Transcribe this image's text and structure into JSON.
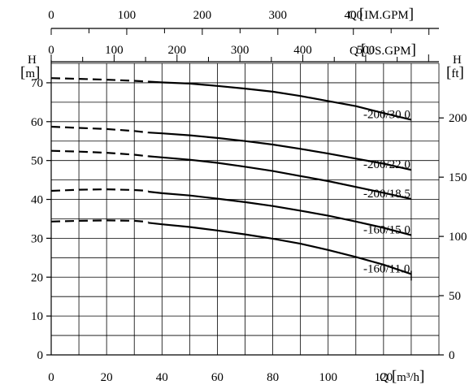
{
  "chart_data": {
    "type": "line",
    "x_axis": {
      "label": "Q [m³/h]",
      "label_text": "Q",
      "unit_text": "m³/h",
      "min": 0,
      "max": 140,
      "major_ticks": [
        0,
        20,
        40,
        60,
        80,
        100,
        120
      ],
      "minor_step": 10
    },
    "y_axis_left": {
      "label": "H [m]",
      "name_text": "H",
      "unit_text": "m",
      "min": 0,
      "max": 75,
      "major_ticks": [
        0,
        10,
        20,
        30,
        40,
        50,
        60,
        70
      ],
      "minor_step": 5
    },
    "y_axis_right": {
      "label": "H [ft]",
      "name_text": "H",
      "unit_text": "ft",
      "ticks": [
        0,
        50,
        100,
        150,
        200
      ],
      "tick_labels": [
        "0",
        "50",
        "100",
        "150",
        "200"
      ]
    },
    "top_axis_us": {
      "label": "Q [US.GPM]",
      "name_text": "Q",
      "unit_text": "US.GPM",
      "ticks": [
        0,
        100,
        200,
        300,
        400,
        500
      ],
      "tick_labels": [
        "0",
        "100",
        "200",
        "300",
        "400",
        "500"
      ]
    },
    "top_axis_im": {
      "label": "Q [IM.GPM]",
      "name_text": "Q",
      "unit_text": "IM.GPM",
      "ticks": [
        0,
        100,
        200,
        300,
        400
      ],
      "tick_labels": [
        "0",
        "100",
        "200",
        "300",
        "400"
      ]
    },
    "grid": true,
    "series": [
      {
        "name": "-200/30.0",
        "dashed": {
          "x": [
            0,
            10,
            20,
            30,
            35
          ],
          "y": [
            71.2,
            71.0,
            70.8,
            70.5,
            70.3
          ]
        },
        "solid": {
          "x": [
            35,
            40,
            50,
            60,
            70,
            80,
            90,
            100,
            110,
            120,
            130
          ],
          "y": [
            70.3,
            70.1,
            69.8,
            69.2,
            68.5,
            67.7,
            66.6,
            65.3,
            64.0,
            62.2,
            60.5
          ]
        }
      },
      {
        "name": "-200/22.0",
        "dashed": {
          "x": [
            0,
            10,
            20,
            30,
            35
          ],
          "y": [
            58.7,
            58.4,
            58.1,
            57.6,
            57.2
          ]
        },
        "solid": {
          "x": [
            35,
            40,
            50,
            60,
            70,
            80,
            90,
            100,
            110,
            120,
            130
          ],
          "y": [
            57.2,
            57.0,
            56.5,
            55.8,
            55.0,
            54.1,
            53.0,
            51.8,
            50.5,
            49.2,
            47.6
          ]
        }
      },
      {
        "name": "-200/18.5",
        "dashed": {
          "x": [
            0,
            10,
            20,
            30,
            35
          ],
          "y": [
            52.5,
            52.3,
            52.0,
            51.5,
            51.1
          ]
        },
        "solid": {
          "x": [
            35,
            40,
            50,
            60,
            70,
            80,
            90,
            100,
            110,
            120,
            130
          ],
          "y": [
            51.1,
            50.8,
            50.2,
            49.4,
            48.4,
            47.3,
            46.0,
            44.7,
            43.2,
            41.7,
            40.1
          ]
        }
      },
      {
        "name": "-160/15.0",
        "dashed": {
          "x": [
            0,
            10,
            20,
            30,
            35
          ],
          "y": [
            42.2,
            42.5,
            42.6,
            42.4,
            42.2
          ]
        },
        "solid": {
          "x": [
            35,
            40,
            50,
            60,
            70,
            80,
            90,
            100,
            110,
            120,
            130
          ],
          "y": [
            42.0,
            41.6,
            41.0,
            40.2,
            39.3,
            38.3,
            37.1,
            35.8,
            34.3,
            32.7,
            30.8
          ]
        }
      },
      {
        "name": "-160/11.0",
        "dashed": {
          "x": [
            0,
            10,
            20,
            30,
            35
          ],
          "y": [
            34.3,
            34.5,
            34.6,
            34.5,
            34.2
          ]
        },
        "solid": {
          "x": [
            35,
            40,
            50,
            60,
            70,
            80,
            90,
            100,
            110,
            120,
            130
          ],
          "y": [
            34.0,
            33.6,
            32.9,
            32.0,
            31.0,
            29.9,
            28.6,
            27.0,
            25.2,
            23.2,
            20.8
          ]
        }
      }
    ]
  }
}
